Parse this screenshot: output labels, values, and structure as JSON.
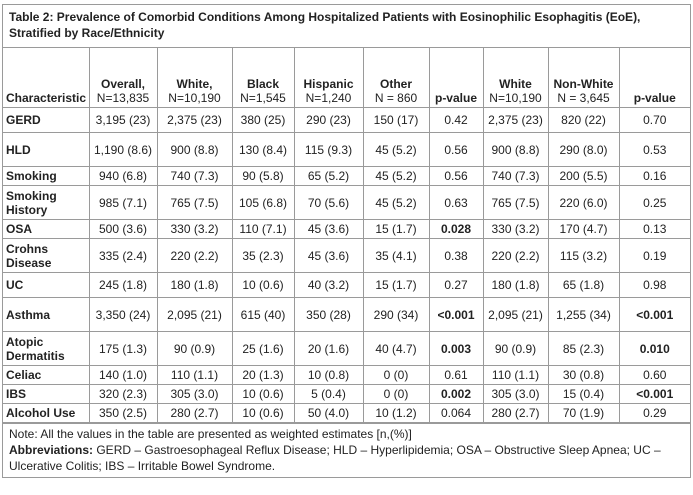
{
  "caption": "Table 2: Prevalence of Comorbid Conditions Among Hospitalized Patients with Eosinophilic Esophagitis (EoE), Stratified by Race/Ethnicity",
  "headers": [
    {
      "line1": "",
      "line2": "Characteristic"
    },
    {
      "line1": "Overall,",
      "line2": "N=13,835"
    },
    {
      "line1": "White,",
      "line2": "N=10,190"
    },
    {
      "line1": "Black",
      "line2": "N=1,545"
    },
    {
      "line1": "Hispanic",
      "line2": "N=1,240"
    },
    {
      "line1": "Other",
      "line2": "N = 860"
    },
    {
      "line1": "",
      "line2": "p-value"
    },
    {
      "line1": "White",
      "line2": "N=10,190"
    },
    {
      "line1": "Non-White",
      "line2": "N = 3,645"
    },
    {
      "line1": "",
      "line2": "p-value"
    }
  ],
  "rows": [
    {
      "label": "GERD",
      "cells": [
        "3,195 (23)",
        "2,375 (23)",
        "380 (25)",
        "290 (23)",
        "150 (17)",
        "0.42",
        "2,375 (23)",
        "820 (22)",
        "0.70"
      ],
      "bold_p1": false,
      "bold_p2": false
    },
    {
      "label": "HLD",
      "cells": [
        "1,190 (8.6)",
        "900 (8.8)",
        "130 (8.4)",
        "115 (9.3)",
        "45 (5.2)",
        "0.56",
        "900 (8.8)",
        "290 (8.0)",
        "0.53"
      ],
      "bold_p1": false,
      "bold_p2": false
    },
    {
      "label": "Smoking",
      "cells": [
        "940 (6.8)",
        "740 (7.3)",
        "90 (5.8)",
        "65 (5.2)",
        "45 (5.2)",
        "0.56",
        "740 (7.3)",
        "200 (5.5)",
        "0.16"
      ],
      "bold_p1": false,
      "bold_p2": false
    },
    {
      "label": "Smoking History",
      "cells": [
        "985 (7.1)",
        "765 (7.5)",
        "105 (6.8)",
        "70 (5.6)",
        "45 (5.2)",
        "0.63",
        "765 (7.5)",
        "220 (6.0)",
        "0.25"
      ],
      "bold_p1": false,
      "bold_p2": false
    },
    {
      "label": "OSA",
      "cells": [
        "500 (3.6)",
        "330 (3.2)",
        "110 (7.1)",
        "45 (3.6)",
        "15 (1.7)",
        "0.028",
        "330 (3.2)",
        "170 (4.7)",
        "0.13"
      ],
      "bold_p1": true,
      "bold_p2": false
    },
    {
      "label": "Crohns Disease",
      "cells": [
        "335 (2.4)",
        "220 (2.2)",
        "35 (2.3)",
        "45 (3.6)",
        "35 (4.1)",
        "0.38",
        "220 (2.2)",
        "115 (3.2)",
        "0.19"
      ],
      "bold_p1": false,
      "bold_p2": false
    },
    {
      "label": "UC",
      "cells": [
        "245 (1.8)",
        "180 (1.8)",
        "10 (0.6)",
        "40 (3.2)",
        "15 (1.7)",
        "0.27",
        "180 (1.8)",
        "65 (1.8)",
        "0.98"
      ],
      "bold_p1": false,
      "bold_p2": false
    },
    {
      "label": "Asthma",
      "cells": [
        "3,350 (24)",
        "2,095 (21)",
        "615 (40)",
        "350 (28)",
        "290 (34)",
        "<0.001",
        "2,095 (21)",
        "1,255 (34)",
        "<0.001"
      ],
      "bold_p1": true,
      "bold_p2": true
    },
    {
      "label": "Atopic Dermatitis",
      "cells": [
        "175 (1.3)",
        "90 (0.9)",
        "25 (1.6)",
        "20 (1.6)",
        "40 (4.7)",
        "0.003",
        "90 (0.9)",
        "85 (2.3)",
        "0.010"
      ],
      "bold_p1": true,
      "bold_p2": true
    },
    {
      "label": "Celiac",
      "cells": [
        "140 (1.0)",
        "110 (1.1)",
        "20 (1.3)",
        "10 (0.8)",
        "0 (0)",
        "0.61",
        "110 (1.1)",
        "30 (0.8)",
        "0.60"
      ],
      "bold_p1": false,
      "bold_p2": false
    },
    {
      "label": "IBS",
      "cells": [
        "320 (2.3)",
        "305 (3.0)",
        "10 (0.6)",
        "5 (0.4)",
        "0 (0)",
        "0.002",
        "305 (3.0)",
        "15 (0.4)",
        "<0.001"
      ],
      "bold_p1": true,
      "bold_p2": true
    },
    {
      "label": "Alcohol Use",
      "cells": [
        "350 (2.5)",
        "280 (2.7)",
        "10 (0.6)",
        "50 (4.0)",
        "10 (1.2)",
        "0.064",
        "280 (2.7)",
        "70 (1.9)",
        "0.29"
      ],
      "bold_p1": false,
      "bold_p2": false
    }
  ],
  "note": "Note: All the values in the table are presented as weighted estimates [n,(%)]",
  "abbrev_label": "Abbreviations:",
  "abbrev_text": " GERD – Gastroesophageal Reflux Disease; HLD – Hyperlipidemia; OSA – Obstructive Sleep Apnea; UC – Ulcerative Colitis; IBS – Irritable Bowel Syndrome."
}
